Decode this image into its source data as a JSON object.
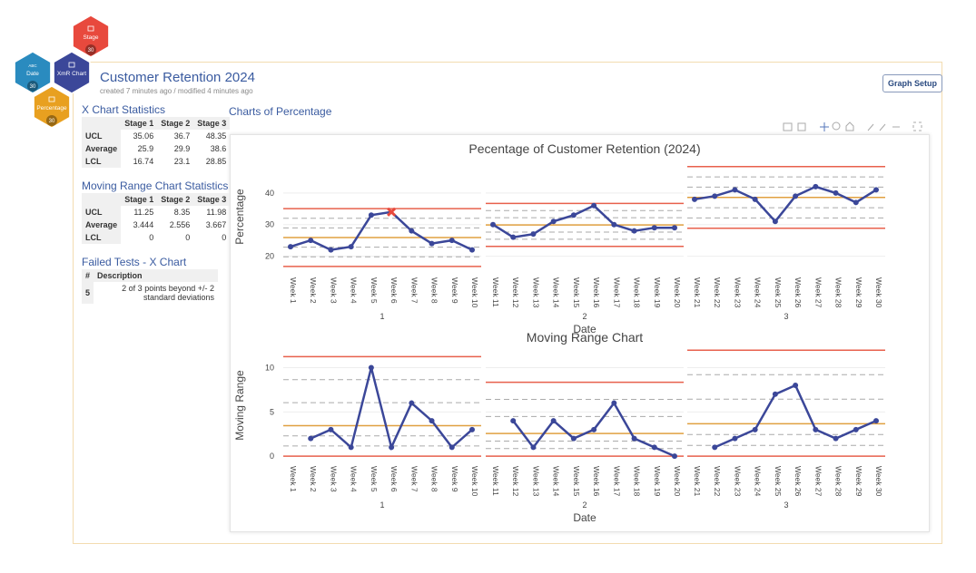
{
  "nodes": [
    {
      "label": "Stage",
      "badge": "30"
    },
    {
      "kind": "ABC",
      "label": "Date",
      "badge": "30"
    },
    {
      "label": "XmR Chart"
    },
    {
      "label": "Percentage",
      "badge": "30"
    }
  ],
  "header": {
    "title": "Customer Retention 2024",
    "subtitle": "created 7 minutes ago / modified 4 minutes ago",
    "button": "Graph Setup"
  },
  "sidebar": {
    "x_stats": {
      "title": "X Chart Statistics",
      "columns": [
        "Stage 1",
        "Stage 2",
        "Stage 3"
      ],
      "rows": [
        [
          "UCL",
          35.06,
          36.7,
          48.35
        ],
        [
          "Average",
          25.9,
          29.9,
          38.6
        ],
        [
          "LCL",
          16.74,
          23.1,
          28.85
        ]
      ]
    },
    "mr_stats": {
      "title": "Moving Range Chart Statistics",
      "columns": [
        "Stage 1",
        "Stage 2",
        "Stage 3"
      ],
      "rows": [
        [
          "UCL",
          11.25,
          8.35,
          11.98
        ],
        [
          "Average",
          3.444,
          2.556,
          3.667
        ],
        [
          "LCL",
          0,
          0,
          0
        ]
      ]
    },
    "failed": {
      "title": "Failed Tests - X Chart",
      "columns": [
        "#",
        "Description"
      ],
      "rows": [
        [
          5,
          "2 of 3 points beyond +/- 2 standard deviations"
        ]
      ]
    }
  },
  "charts_title": "Charts of Percentage",
  "chart_data": [
    {
      "type": "line",
      "title": "Pecentage of Customer Retention (2024)",
      "xlabel": "Date",
      "ylabel": "Percentage",
      "stages": [
        "1",
        "2",
        "3"
      ],
      "categories": [
        "Week 1",
        "Week 2",
        "Week 3",
        "Week 4",
        "Week 5",
        "Week 6",
        "Week 7",
        "Week 8",
        "Week 9",
        "Week 10",
        "Week 11",
        "Week 12",
        "Week 13",
        "Week 14",
        "Week 15",
        "Week 16",
        "Week 17",
        "Week 18",
        "Week 19",
        "Week 20",
        "Week 21",
        "Week 22",
        "Week 23",
        "Week 24",
        "Week 25",
        "Week 26",
        "Week 27",
        "Week 28",
        "Week 29",
        "Week 30"
      ],
      "series": [
        {
          "color": "#3b4799",
          "values": [
            23,
            25,
            22,
            23,
            33,
            34,
            28,
            24,
            25,
            22,
            30,
            26,
            27,
            31,
            33,
            36,
            30,
            28,
            29,
            29,
            38,
            39,
            41,
            38,
            31,
            39,
            42,
            40,
            37,
            41
          ]
        }
      ],
      "ylim": [
        15,
        50
      ],
      "yticks": [
        20,
        30,
        40
      ]
    },
    {
      "type": "line",
      "title": "Moving Range Chart",
      "xlabel": "Date",
      "ylabel": "Moving Range",
      "stages": [
        "1",
        "2",
        "3"
      ],
      "categories": [
        "Week 1",
        "Week 2",
        "Week 3",
        "Week 4",
        "Week 5",
        "Week 6",
        "Week 7",
        "Week 8",
        "Week 9",
        "Week 10",
        "Week 11",
        "Week 12",
        "Week 13",
        "Week 14",
        "Week 15",
        "Week 16",
        "Week 17",
        "Week 18",
        "Week 19",
        "Week 20",
        "Week 21",
        "Week 22",
        "Week 23",
        "Week 24",
        "Week 25",
        "Week 26",
        "Week 27",
        "Week 28",
        "Week 29",
        "Week 30"
      ],
      "series": [
        {
          "color": "#3b4799",
          "values": [
            null,
            2,
            3,
            1,
            10,
            1,
            6,
            4,
            1,
            3,
            null,
            4,
            1,
            4,
            2,
            3,
            6,
            2,
            1,
            0,
            null,
            1,
            2,
            3,
            7,
            8,
            3,
            2,
            3,
            4
          ]
        }
      ],
      "ylim": [
        -0.5,
        12
      ],
      "yticks": [
        0,
        5,
        10
      ]
    }
  ]
}
